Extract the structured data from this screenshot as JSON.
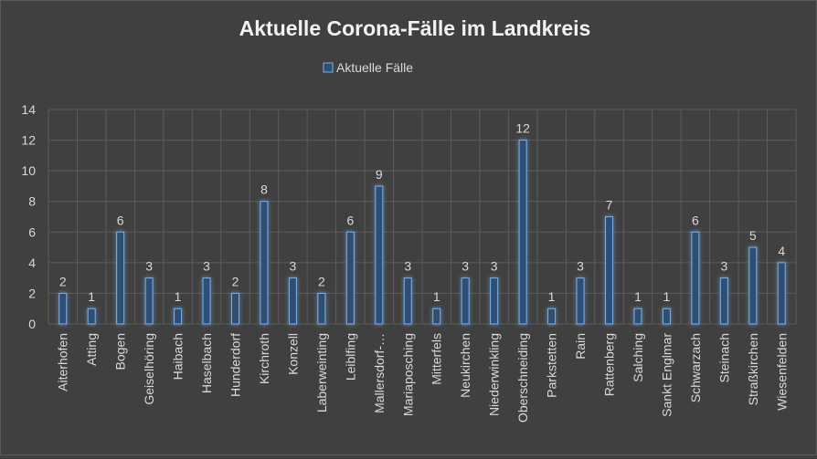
{
  "chart_data": {
    "type": "bar",
    "title": "Aktuelle Corona-Fälle im Landkreis",
    "xlabel": "",
    "ylabel": "",
    "ylim": [
      0,
      14
    ],
    "yticks": [
      0,
      2,
      4,
      6,
      8,
      10,
      12,
      14
    ],
    "grid": true,
    "legend_position": "top",
    "categories": [
      "Aiterhofen",
      "Atting",
      "Bogen",
      "Geiselhöring",
      "Haibach",
      "Haselbach",
      "Hunderdorf",
      "Kirchroth",
      "Konzell",
      "Laberweinting",
      "Leiblfing",
      "Mallersdorf-…",
      "Mariaposching",
      "Mitterfels",
      "Neukirchen",
      "Niederwinkling",
      "Oberschneiding",
      "Parkstetten",
      "Rain",
      "Rattenberg",
      "Salching",
      "Sankt Englmar",
      "Schwarzach",
      "Steinach",
      "Straßkirchen",
      "Wiesenfelden"
    ],
    "series": [
      {
        "name": "Aktuelle Fälle",
        "values": [
          2,
          1,
          6,
          3,
          1,
          3,
          2,
          8,
          3,
          2,
          6,
          9,
          3,
          1,
          3,
          3,
          12,
          1,
          3,
          7,
          1,
          1,
          6,
          3,
          5,
          4
        ]
      }
    ],
    "colors": {
      "background": "#404040",
      "bar_fill": "#2e4f73",
      "bar_stroke": "#7fb2e6",
      "bar_glow": "#4f93d8",
      "grid": "#5c5c5c",
      "text": "#d9d9d9",
      "title": "#f2f2f2"
    }
  }
}
